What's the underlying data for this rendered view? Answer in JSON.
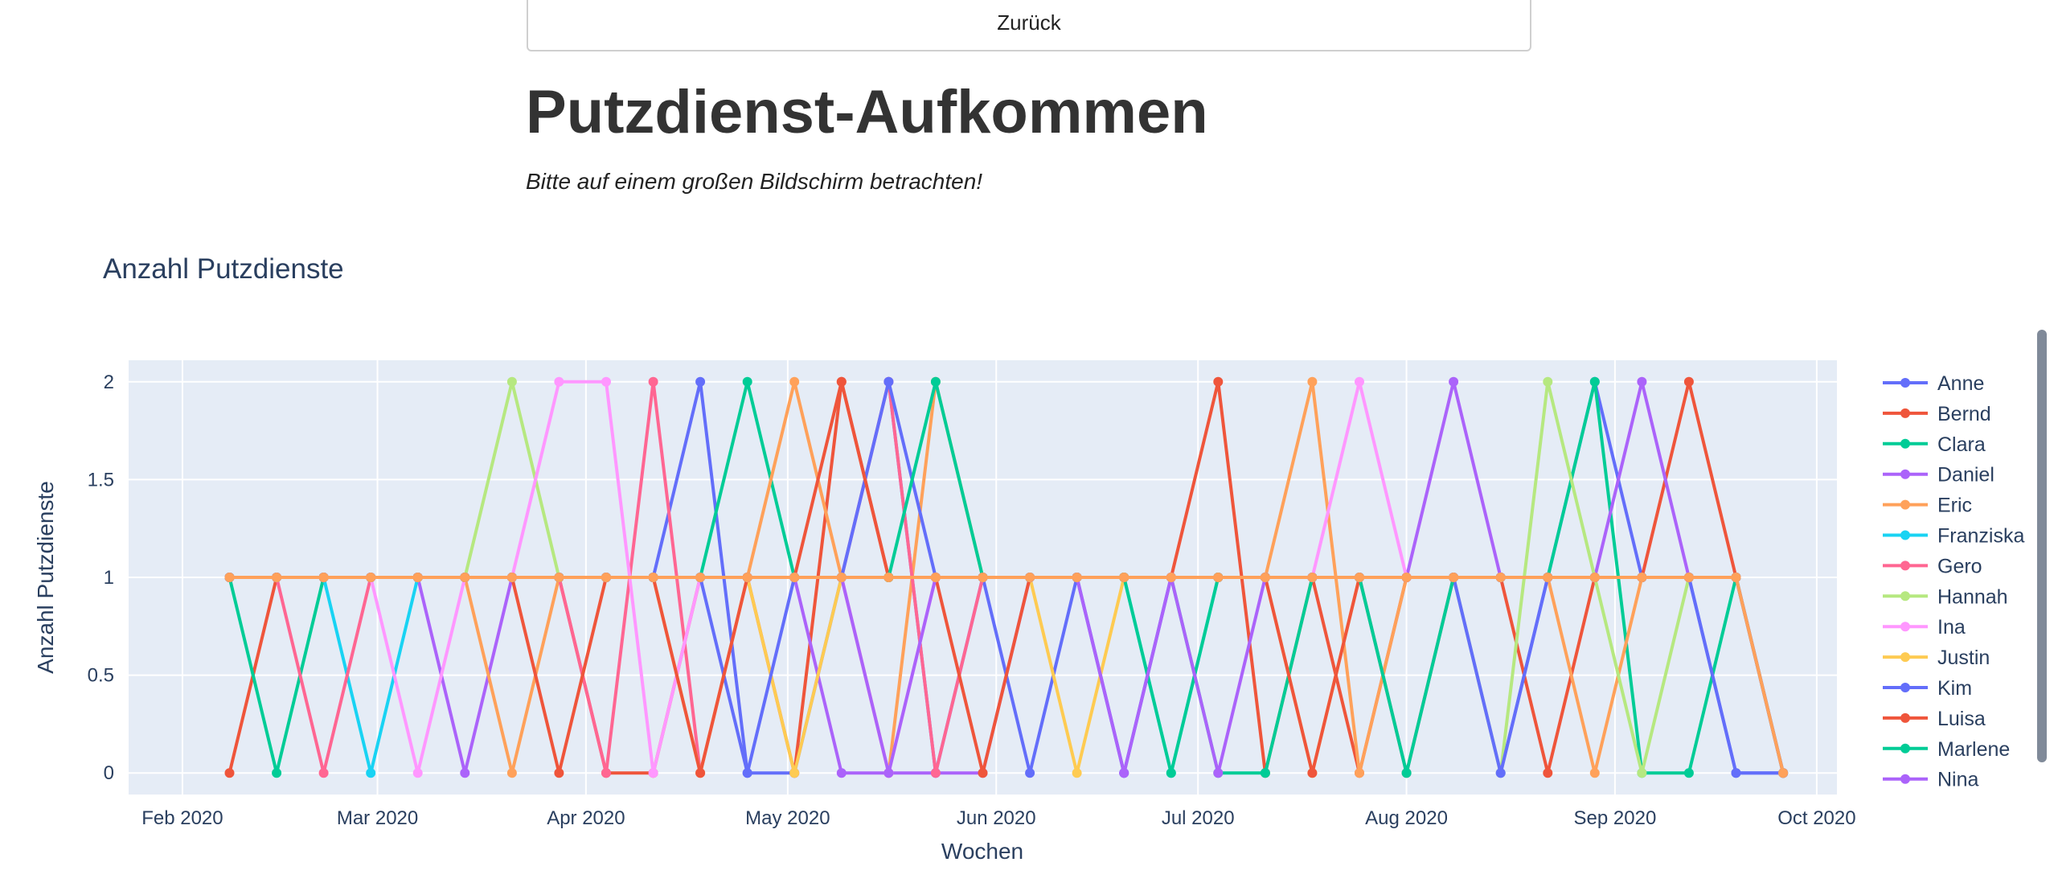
{
  "page": {
    "back_label": "Zurück",
    "title": "Putzdienst-Aufkommen",
    "subtitle": "Bitte auf einem großen Bildschirm betrachten!"
  },
  "chart_data": {
    "type": "line",
    "title": "Anzahl Putzdienste",
    "xlabel": "Wochen",
    "ylabel": "Anzahl Putzdienste",
    "x_range": [
      "2020-01-24",
      "2020-10-04"
    ],
    "ylim": [
      -0.11,
      2.11
    ],
    "x_ticks": [
      {
        "date": "2020-02-01",
        "label": "Feb 2020"
      },
      {
        "date": "2020-03-01",
        "label": "Mar 2020"
      },
      {
        "date": "2020-04-01",
        "label": "Apr 2020"
      },
      {
        "date": "2020-05-01",
        "label": "May 2020"
      },
      {
        "date": "2020-06-01",
        "label": "Jun 2020"
      },
      {
        "date": "2020-07-01",
        "label": "Jul 2020"
      },
      {
        "date": "2020-08-01",
        "label": "Aug 2020"
      },
      {
        "date": "2020-09-01",
        "label": "Sep 2020"
      },
      {
        "date": "2020-10-01",
        "label": "Oct 2020"
      }
    ],
    "y_ticks": [
      {
        "value": 0,
        "label": "0"
      },
      {
        "value": 0.5,
        "label": "0.5"
      },
      {
        "value": 1,
        "label": "1"
      },
      {
        "value": 1.5,
        "label": "1.5"
      },
      {
        "value": 2,
        "label": "2"
      }
    ],
    "grid": true,
    "legend_position": "right",
    "x": [
      "2020-02-08",
      "2020-02-15",
      "2020-02-22",
      "2020-02-29",
      "2020-03-07",
      "2020-03-14",
      "2020-03-21",
      "2020-03-28",
      "2020-04-04",
      "2020-04-11",
      "2020-04-18",
      "2020-04-25",
      "2020-05-02",
      "2020-05-09",
      "2020-05-16",
      "2020-05-23",
      "2020-05-30",
      "2020-06-06",
      "2020-06-13",
      "2020-06-20",
      "2020-06-27",
      "2020-07-04",
      "2020-07-11",
      "2020-07-18",
      "2020-07-25",
      "2020-08-01",
      "2020-08-08",
      "2020-08-15",
      "2020-08-22",
      "2020-08-29",
      "2020-09-05",
      "2020-09-12",
      "2020-09-19",
      "2020-09-26"
    ],
    "series": [
      {
        "name": "Anne",
        "color": "#636efa",
        "values": [
          1,
          1,
          1,
          1,
          1,
          1,
          1,
          1,
          1,
          1,
          2,
          0,
          0,
          1,
          2,
          0,
          1,
          0,
          1,
          0,
          1,
          1,
          1,
          1,
          1,
          1,
          1,
          0,
          1,
          2,
          1,
          1,
          0,
          0
        ]
      },
      {
        "name": "Bernd",
        "color": "#ef553b",
        "values": [
          0,
          1,
          1,
          1,
          1,
          1,
          1,
          1,
          0,
          0,
          1,
          1,
          0,
          2,
          1,
          1,
          1,
          1,
          1,
          1,
          1,
          2,
          0,
          1,
          0,
          1,
          1,
          1,
          0,
          1,
          1,
          2,
          1,
          0
        ]
      },
      {
        "name": "Clara",
        "color": "#00cc96",
        "values": [
          1,
          0,
          1,
          1,
          1,
          1,
          1,
          1,
          1,
          1,
          1,
          2,
          1,
          1,
          1,
          1,
          1,
          1,
          1,
          1,
          1,
          0,
          0,
          1,
          1,
          0,
          1,
          1,
          1,
          2,
          0,
          0,
          1,
          0
        ]
      },
      {
        "name": "Daniel",
        "color": "#ab63fa",
        "values": [
          1,
          1,
          1,
          1,
          1,
          0,
          1,
          1,
          1,
          1,
          1,
          1,
          1,
          0,
          0,
          0,
          0,
          1,
          1,
          1,
          1,
          1,
          1,
          1,
          1,
          1,
          2,
          1,
          1,
          1,
          2,
          1,
          1,
          0
        ]
      },
      {
        "name": "Eric",
        "color": "#ffa15a",
        "values": [
          1,
          1,
          1,
          1,
          1,
          1,
          0,
          1,
          1,
          1,
          1,
          1,
          2,
          1,
          0,
          2,
          1,
          1,
          1,
          1,
          1,
          1,
          1,
          2,
          0,
          1,
          1,
          1,
          1,
          0,
          1,
          1,
          1,
          0
        ]
      },
      {
        "name": "Franziska",
        "color": "#19d3f3",
        "values": [
          1,
          1,
          1,
          0,
          1,
          1,
          1,
          1,
          1,
          1,
          1,
          1,
          1,
          1,
          1,
          1,
          1,
          1,
          1,
          1,
          0,
          1,
          1,
          1,
          1,
          1,
          1,
          1,
          1,
          1,
          1,
          1,
          1,
          0
        ]
      },
      {
        "name": "Gero",
        "color": "#ff6692",
        "values": [
          1,
          1,
          0,
          1,
          1,
          1,
          1,
          1,
          0,
          2,
          0,
          1,
          1,
          1,
          2,
          0,
          1,
          1,
          1,
          1,
          1,
          1,
          1,
          1,
          1,
          0,
          1,
          1,
          1,
          1,
          1,
          1,
          1,
          0
        ]
      },
      {
        "name": "Hannah",
        "color": "#b6e880",
        "values": [
          1,
          1,
          1,
          1,
          1,
          1,
          2,
          1,
          1,
          1,
          1,
          1,
          1,
          1,
          1,
          1,
          1,
          1,
          1,
          1,
          1,
          1,
          1,
          1,
          1,
          1,
          1,
          0,
          2,
          1,
          0,
          1,
          1,
          0
        ]
      },
      {
        "name": "Ina",
        "color": "#ff97ff",
        "values": [
          1,
          1,
          1,
          1,
          0,
          1,
          1,
          2,
          2,
          0,
          1,
          1,
          1,
          1,
          0,
          1,
          1,
          1,
          1,
          1,
          1,
          1,
          1,
          1,
          2,
          1,
          1,
          1,
          1,
          1,
          1,
          1,
          1,
          0
        ]
      },
      {
        "name": "Justin",
        "color": "#fecb52",
        "values": [
          1,
          1,
          1,
          1,
          1,
          1,
          1,
          1,
          1,
          1,
          0,
          1,
          0,
          1,
          1,
          1,
          1,
          1,
          0,
          1,
          1,
          1,
          1,
          0,
          1,
          1,
          1,
          1,
          1,
          1,
          1,
          1,
          1,
          0
        ]
      },
      {
        "name": "Kim",
        "color": "#636efa",
        "values": [
          1,
          1,
          1,
          1,
          1,
          1,
          1,
          1,
          1,
          1,
          1,
          0,
          1,
          1,
          2,
          1,
          1,
          1,
          1,
          0,
          1,
          1,
          1,
          1,
          1,
          1,
          1,
          0,
          1,
          1,
          1,
          1,
          0,
          0
        ]
      },
      {
        "name": "Luisa",
        "color": "#ef553b",
        "values": [
          1,
          1,
          1,
          1,
          1,
          1,
          1,
          0,
          1,
          1,
          0,
          1,
          1,
          2,
          1,
          1,
          0,
          1,
          1,
          1,
          1,
          1,
          1,
          0,
          1,
          1,
          1,
          1,
          1,
          1,
          1,
          1,
          1,
          0
        ]
      },
      {
        "name": "Marlene",
        "color": "#00cc96",
        "values": [
          1,
          1,
          1,
          1,
          1,
          1,
          1,
          1,
          1,
          1,
          1,
          1,
          1,
          1,
          1,
          2,
          1,
          1,
          1,
          1,
          0,
          1,
          1,
          1,
          1,
          0,
          1,
          1,
          1,
          1,
          1,
          1,
          1,
          0
        ]
      },
      {
        "name": "Nina",
        "color": "#ab63fa",
        "values": [
          1,
          1,
          1,
          1,
          1,
          1,
          1,
          1,
          1,
          1,
          1,
          1,
          1,
          1,
          0,
          1,
          1,
          1,
          1,
          0,
          1,
          0,
          1,
          1,
          1,
          1,
          1,
          1,
          1,
          1,
          1,
          1,
          1,
          0
        ]
      },
      {
        "name": "",
        "color": "#ffa15a",
        "values": [
          1,
          1,
          1,
          1,
          1,
          1,
          1,
          1,
          1,
          1,
          1,
          1,
          1,
          1,
          1,
          1,
          1,
          1,
          1,
          1,
          1,
          1,
          1,
          1,
          1,
          1,
          1,
          1,
          1,
          1,
          1,
          1,
          1,
          0
        ]
      }
    ]
  }
}
